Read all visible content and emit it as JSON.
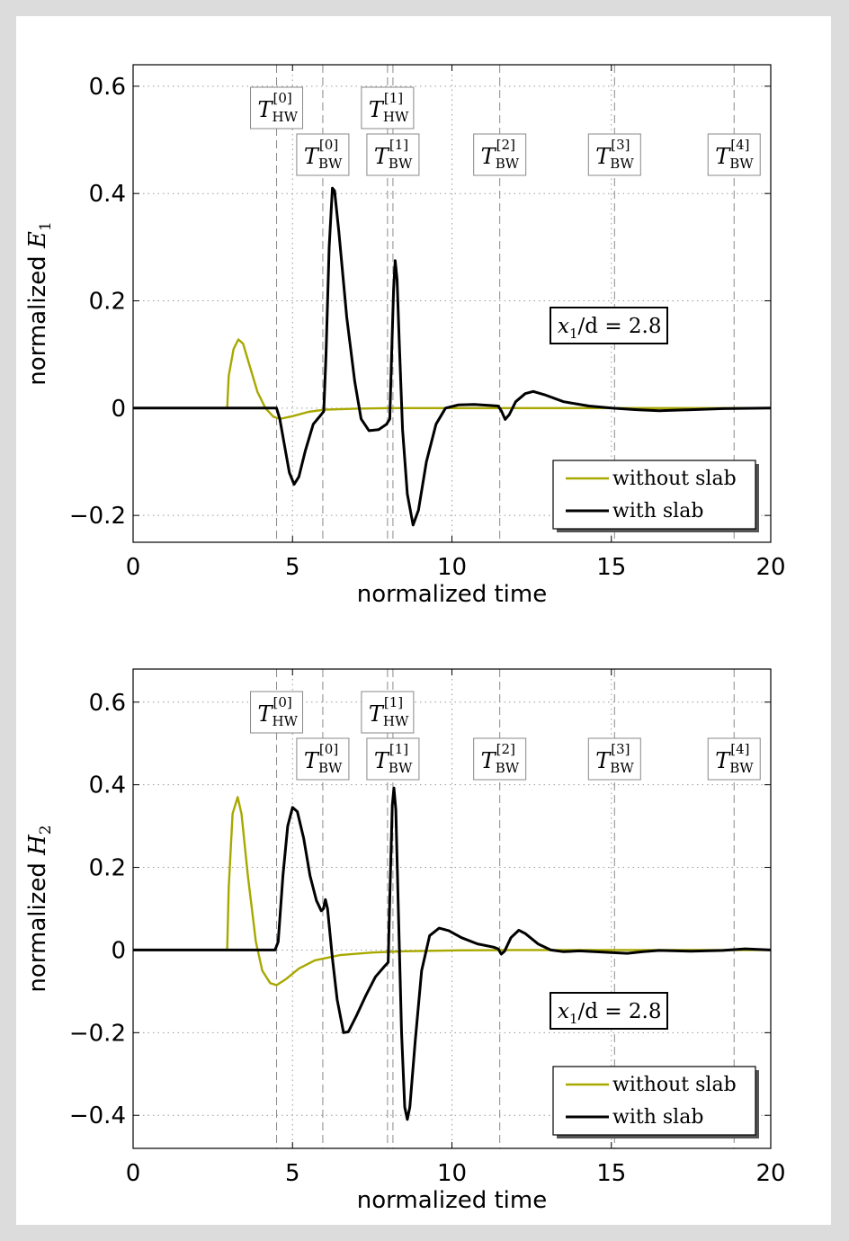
{
  "chart_data": [
    {
      "type": "line",
      "xlabel": "normalized time",
      "ylabel_prefix": "normalized",
      "ylabel_sym": "E",
      "ylabel_sub": "1",
      "xlim": [
        0,
        20
      ],
      "ylim": [
        -0.25,
        0.64
      ],
      "xticks": [
        0,
        5,
        10,
        15,
        20
      ],
      "yticks": [
        -0.2,
        0,
        0.2,
        0.4,
        0.6
      ],
      "ytick_labels": [
        "−0.2",
        "0",
        "0.2",
        "0.4",
        "0.6"
      ],
      "grid": true,
      "legend_position": "bottom-right",
      "annotation": {
        "sym": "x",
        "sub": "1",
        "rest": "/d = 2.8"
      },
      "hw_markers": [
        {
          "t": 4.5,
          "sup": "[0]",
          "sub": "HW"
        },
        {
          "t": 7.98,
          "sup": "[1]",
          "sub": "HW"
        }
      ],
      "bw_markers": [
        {
          "t": 5.95,
          "sup": "[0]",
          "sub": "BW"
        },
        {
          "t": 8.15,
          "sup": "[1]",
          "sub": "BW"
        },
        {
          "t": 11.5,
          "sup": "[2]",
          "sub": "BW"
        },
        {
          "t": 15.1,
          "sup": "[3]",
          "sub": "BW"
        },
        {
          "t": 18.85,
          "sup": "[4]",
          "sub": "BW"
        }
      ],
      "series": [
        {
          "name": "without slab",
          "color": "#a8a800",
          "points": [
            [
              0,
              0
            ],
            [
              2.95,
              0
            ],
            [
              3.0,
              0.06
            ],
            [
              3.15,
              0.11
            ],
            [
              3.3,
              0.128
            ],
            [
              3.45,
              0.12
            ],
            [
              3.65,
              0.08
            ],
            [
              3.9,
              0.03
            ],
            [
              4.15,
              0.0
            ],
            [
              4.4,
              -0.016
            ],
            [
              4.6,
              -0.02
            ],
            [
              5.0,
              -0.015
            ],
            [
              5.5,
              -0.007
            ],
            [
              6.0,
              -0.003
            ],
            [
              7.0,
              -0.001
            ],
            [
              8.0,
              0
            ],
            [
              20,
              0
            ]
          ]
        },
        {
          "name": "with slab",
          "color": "#000000",
          "points": [
            [
              0,
              0
            ],
            [
              4.5,
              0
            ],
            [
              4.6,
              -0.02
            ],
            [
              4.75,
              -0.07
            ],
            [
              4.9,
              -0.12
            ],
            [
              5.05,
              -0.142
            ],
            [
              5.2,
              -0.128
            ],
            [
              5.4,
              -0.08
            ],
            [
              5.65,
              -0.03
            ],
            [
              5.9,
              -0.012
            ],
            [
              5.98,
              -0.006
            ],
            [
              6.05,
              0.1
            ],
            [
              6.15,
              0.3
            ],
            [
              6.25,
              0.41
            ],
            [
              6.32,
              0.405
            ],
            [
              6.45,
              0.33
            ],
            [
              6.7,
              0.17
            ],
            [
              6.95,
              0.05
            ],
            [
              7.15,
              -0.02
            ],
            [
              7.4,
              -0.042
            ],
            [
              7.7,
              -0.04
            ],
            [
              7.95,
              -0.03
            ],
            [
              8.05,
              -0.02
            ],
            [
              8.1,
              0.08
            ],
            [
              8.17,
              0.22
            ],
            [
              8.22,
              0.275
            ],
            [
              8.28,
              0.24
            ],
            [
              8.35,
              0.12
            ],
            [
              8.45,
              -0.04
            ],
            [
              8.6,
              -0.16
            ],
            [
              8.78,
              -0.218
            ],
            [
              8.95,
              -0.19
            ],
            [
              9.2,
              -0.1
            ],
            [
              9.5,
              -0.03
            ],
            [
              9.8,
              0.0
            ],
            [
              10.2,
              0.006
            ],
            [
              10.7,
              0.007
            ],
            [
              11.2,
              0.005
            ],
            [
              11.45,
              0.004
            ],
            [
              11.55,
              -0.005
            ],
            [
              11.67,
              -0.021
            ],
            [
              11.8,
              -0.012
            ],
            [
              12.0,
              0.012
            ],
            [
              12.3,
              0.027
            ],
            [
              12.55,
              0.031
            ],
            [
              12.9,
              0.025
            ],
            [
              13.5,
              0.012
            ],
            [
              14.3,
              0.004
            ],
            [
              15.0,
              0.0
            ],
            [
              15.8,
              -0.003
            ],
            [
              16.5,
              -0.005
            ],
            [
              17.5,
              -0.003
            ],
            [
              18.5,
              -0.001
            ],
            [
              20,
              0
            ]
          ]
        }
      ]
    },
    {
      "type": "line",
      "xlabel": "normalized time",
      "ylabel_prefix": "normalized",
      "ylabel_sym": "H",
      "ylabel_sub": "2",
      "xlim": [
        0,
        20
      ],
      "ylim": [
        -0.48,
        0.68
      ],
      "xticks": [
        0,
        5,
        10,
        15,
        20
      ],
      "yticks": [
        -0.4,
        -0.2,
        0,
        0.2,
        0.4,
        0.6
      ],
      "ytick_labels": [
        "−0.4",
        "−0.2",
        "0",
        "0.2",
        "0.4",
        "0.6"
      ],
      "grid": true,
      "legend_position": "bottom-right",
      "annotation": {
        "sym": "x",
        "sub": "1",
        "rest": "/d = 2.8"
      },
      "hw_markers": [
        {
          "t": 4.5,
          "sup": "[0]",
          "sub": "HW"
        },
        {
          "t": 7.98,
          "sup": "[1]",
          "sub": "HW"
        }
      ],
      "bw_markers": [
        {
          "t": 5.95,
          "sup": "[0]",
          "sub": "BW"
        },
        {
          "t": 8.15,
          "sup": "[1]",
          "sub": "BW"
        },
        {
          "t": 11.5,
          "sup": "[2]",
          "sub": "BW"
        },
        {
          "t": 15.1,
          "sup": "[3]",
          "sub": "BW"
        },
        {
          "t": 18.85,
          "sup": "[4]",
          "sub": "BW"
        }
      ],
      "series": [
        {
          "name": "without slab",
          "color": "#a8a800",
          "points": [
            [
              0,
              0
            ],
            [
              2.95,
              0
            ],
            [
              3.0,
              0.15
            ],
            [
              3.12,
              0.33
            ],
            [
              3.28,
              0.37
            ],
            [
              3.4,
              0.33
            ],
            [
              3.6,
              0.18
            ],
            [
              3.85,
              0.02
            ],
            [
              4.05,
              -0.05
            ],
            [
              4.3,
              -0.08
            ],
            [
              4.5,
              -0.085
            ],
            [
              4.8,
              -0.07
            ],
            [
              5.2,
              -0.045
            ],
            [
              5.7,
              -0.025
            ],
            [
              6.5,
              -0.012
            ],
            [
              7.5,
              -0.006
            ],
            [
              8.5,
              -0.003
            ],
            [
              10,
              -0.001
            ],
            [
              12,
              0
            ],
            [
              20,
              0
            ]
          ]
        },
        {
          "name": "with slab",
          "color": "#000000",
          "points": [
            [
              0,
              0
            ],
            [
              4.45,
              0
            ],
            [
              4.55,
              0.02
            ],
            [
              4.7,
              0.18
            ],
            [
              4.85,
              0.3
            ],
            [
              5.0,
              0.345
            ],
            [
              5.15,
              0.335
            ],
            [
              5.35,
              0.27
            ],
            [
              5.55,
              0.18
            ],
            [
              5.75,
              0.12
            ],
            [
              5.9,
              0.095
            ],
            [
              5.97,
              0.1
            ],
            [
              6.03,
              0.122
            ],
            [
              6.1,
              0.1
            ],
            [
              6.25,
              -0.02
            ],
            [
              6.4,
              -0.12
            ],
            [
              6.6,
              -0.2
            ],
            [
              6.75,
              -0.198
            ],
            [
              7.0,
              -0.16
            ],
            [
              7.3,
              -0.11
            ],
            [
              7.6,
              -0.065
            ],
            [
              7.9,
              -0.038
            ],
            [
              8.0,
              -0.03
            ],
            [
              8.06,
              0.15
            ],
            [
              8.13,
              0.35
            ],
            [
              8.18,
              0.392
            ],
            [
              8.24,
              0.34
            ],
            [
              8.32,
              0.1
            ],
            [
              8.42,
              -0.2
            ],
            [
              8.52,
              -0.38
            ],
            [
              8.6,
              -0.41
            ],
            [
              8.68,
              -0.38
            ],
            [
              8.85,
              -0.22
            ],
            [
              9.05,
              -0.05
            ],
            [
              9.3,
              0.035
            ],
            [
              9.6,
              0.053
            ],
            [
              9.9,
              0.047
            ],
            [
              10.3,
              0.03
            ],
            [
              10.8,
              0.015
            ],
            [
              11.3,
              0.007
            ],
            [
              11.45,
              0.003
            ],
            [
              11.55,
              -0.01
            ],
            [
              11.65,
              -0.003
            ],
            [
              11.85,
              0.03
            ],
            [
              12.1,
              0.048
            ],
            [
              12.3,
              0.04
            ],
            [
              12.7,
              0.015
            ],
            [
              13.1,
              0.0
            ],
            [
              13.5,
              -0.004
            ],
            [
              14.0,
              -0.002
            ],
            [
              15.0,
              -0.006
            ],
            [
              15.5,
              -0.008
            ],
            [
              16.0,
              -0.004
            ],
            [
              16.5,
              -0.001
            ],
            [
              17.5,
              -0.003
            ],
            [
              18.5,
              -0.001
            ],
            [
              19.2,
              0.003
            ],
            [
              20,
              0
            ]
          ]
        }
      ]
    }
  ]
}
